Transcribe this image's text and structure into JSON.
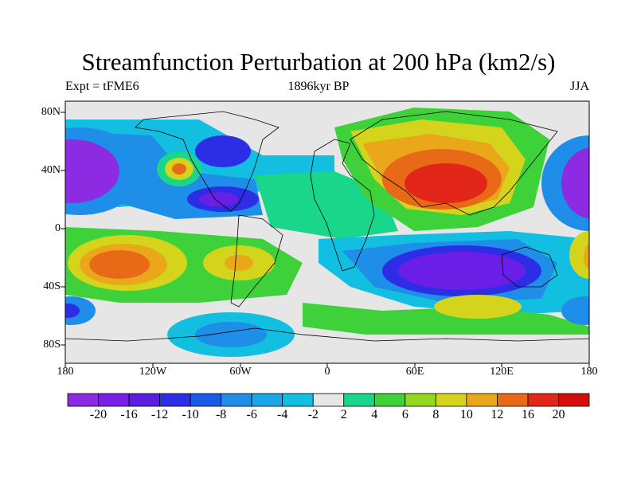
{
  "title": "Streamfunction Perturbation at 200 hPa (km2/s)",
  "subtitle_left": "Expt = tFME6",
  "subtitle_center": "1896kyr BP",
  "subtitle_right": "JJA",
  "lat_labels": [
    "80N",
    "40N",
    "0",
    "40S",
    "80S"
  ],
  "lon_labels": [
    "180",
    "120W",
    "60W",
    "0",
    "60E",
    "120E",
    "180"
  ],
  "colorbar": {
    "labels": [
      "-20",
      "-16",
      "-12",
      "-10",
      "-8",
      "-6",
      "-4",
      "-2",
      "2",
      "4",
      "6",
      "8",
      "10",
      "12",
      "16",
      "20"
    ],
    "colors": [
      "#8c2be2",
      "#7a1fe6",
      "#5a1ee0",
      "#2c2ee6",
      "#1a5ae6",
      "#1e8ee8",
      "#1aa7e8",
      "#12bfe0",
      "#e6e6e6",
      "#19d68a",
      "#3fd13a",
      "#92d81c",
      "#d4d41c",
      "#eaa71a",
      "#e96a16",
      "#e2261a",
      "#d40c0c"
    ]
  },
  "map_colors": {
    "background": "#e6e6e6",
    "deep_purple": "#8c2be2",
    "purple": "#6a1ee6",
    "blue": "#2c2ee6",
    "mid_blue": "#1e8ee8",
    "light_blue": "#12bfe0",
    "cyan_green": "#19d68a",
    "green": "#3fd13a",
    "lime": "#92d81c",
    "yellow": "#d4d41c",
    "orange": "#eaa71a",
    "red_orange": "#e96a16",
    "red": "#e2261a"
  }
}
